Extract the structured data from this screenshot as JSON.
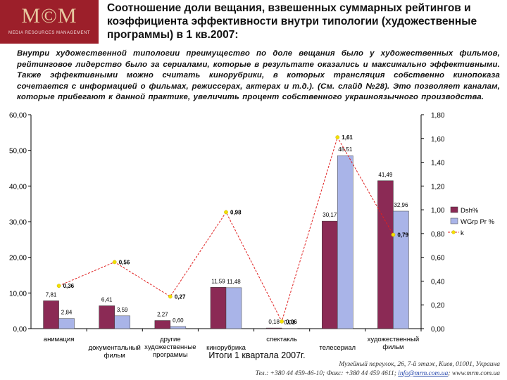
{
  "header": {
    "logo_text": "M©M",
    "logo_subtitle": "MEDIA RESOURCES MANAGEMENT",
    "title": "Соотношение доли вещания, взвешенных суммарных рейтингов и коэффициента эффективности внутри типологии (художественные программы) в 1 кв.2007:"
  },
  "description": "Внутри художественной типологии преимущество по доле вещания было у художественных фильмов, рейтинговое лидерство было за сериалами, которые в результате оказались и максимально эффективными. Также эффективными можно считать кинорубрики, в которых трансляция собственно кинопоказа сочетается с информацией о фильмах, режиссерах, актерах и т.д.). (См. слайд №28). Это позволяет каналам, которые прибегают к данной практике, увеличить процент собственного украиноязычного производства.",
  "chart_data": {
    "type": "bar",
    "categories": [
      "анимация",
      "документальный фильм",
      "другие художественные программы",
      "кинорубрика",
      "спектакль",
      "телесериал",
      "художественный фильм"
    ],
    "category_lines": [
      [
        "анимация"
      ],
      [
        "документальный",
        "фильм"
      ],
      [
        "другие",
        "художественные",
        "программы"
      ],
      [
        "кинорубрика"
      ],
      [
        "спектакль"
      ],
      [
        "телесериал"
      ],
      [
        "художественный",
        "фильм"
      ]
    ],
    "series": [
      {
        "name": "Dsh%",
        "values": [
          7.81,
          6.41,
          2.27,
          11.59,
          0.18,
          30.17,
          41.49
        ],
        "labels": [
          "7,81",
          "6,41",
          "2,27",
          "11,59",
          "0,18",
          "30,17",
          "41,49"
        ],
        "color": "#8b2a55",
        "axis": "left"
      },
      {
        "name": "WGrp Pr %",
        "values": [
          2.84,
          3.59,
          0.6,
          11.48,
          0.01,
          48.51,
          32.96
        ],
        "labels": [
          "2,84",
          "3,59",
          "0,60",
          "11,48",
          "0,01",
          "48,51",
          "32,96"
        ],
        "color": "#a9b4e8",
        "axis": "left"
      },
      {
        "name": "k",
        "type": "line",
        "values": [
          0.36,
          0.56,
          0.27,
          0.98,
          0.06,
          1.61,
          0.79
        ],
        "labels": [
          "0,36",
          "0,56",
          "0,27",
          "0,98",
          "0,06",
          "1,61",
          "0,79"
        ],
        "color": "#e02020",
        "marker_color": "#f2e000",
        "axis": "right"
      }
    ],
    "y_left": {
      "ylim": [
        0,
        60
      ],
      "ticks": [
        "0,00",
        "10,00",
        "20,00",
        "30,00",
        "40,00",
        "50,00",
        "60,00"
      ]
    },
    "y_right": {
      "ylim": [
        0,
        1.8
      ],
      "ticks": [
        "0,00",
        "0,20",
        "0,40",
        "0,60",
        "0,80",
        "1,00",
        "1,20",
        "1,40",
        "1,60",
        "1,80"
      ]
    },
    "xlabel": "Итоги 1 квартала 2007г.",
    "legend_position": "right"
  },
  "footer": {
    "address": "Музейный переулок, 26, 7-й этаж, Киев, 01001, Украина",
    "contacts_prefix": "Тел.: +380 44 459-46-10; Факс: +380 44 459 4611; ",
    "email": "info@mrm.com.ua",
    "separator": "; ",
    "website": "www.mrm.com.ua"
  },
  "colors": {
    "brand": "#9c1f2a",
    "bar1": "#8b2a55",
    "bar2": "#a9b4e8",
    "line": "#e02020",
    "marker": "#f2e000"
  }
}
